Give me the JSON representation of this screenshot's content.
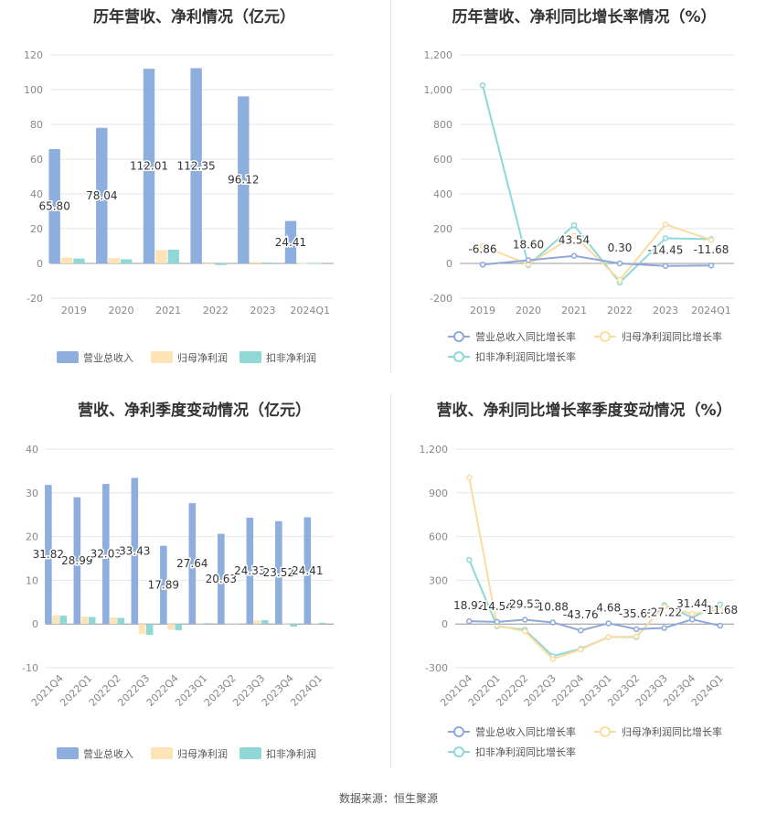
{
  "footer": "数据来源：恒生聚源",
  "colors": {
    "revenue": "#8eaedd",
    "parent_profit": "#fde3b5",
    "deducted_profit": "#8fd8d6",
    "revenue_line": "#8ea8d8",
    "parent_line": "#fbdca0",
    "deducted_line": "#8dd8d8"
  },
  "chart_data": [
    {
      "id": "annual_amount",
      "type": "bar",
      "title": "历年营收、净利情况（亿元）",
      "categories": [
        "2019",
        "2020",
        "2021",
        "2022",
        "2023",
        "2024Q1"
      ],
      "ylim": [
        -20,
        120
      ],
      "yticks": [
        -20,
        0,
        20,
        40,
        60,
        80,
        100,
        120
      ],
      "series": [
        {
          "name": "营业总收入",
          "values": [
            65.8,
            78.04,
            112.01,
            112.35,
            96.12,
            24.41
          ],
          "labels": [
            "65.80",
            "78.04",
            "112.01",
            "112.35",
            "96.12",
            "24.41"
          ]
        },
        {
          "name": "归母净利润",
          "values": [
            3.4,
            3.1,
            7.7,
            -0.5,
            0.8,
            0.2
          ]
        },
        {
          "name": "扣非净利润",
          "values": [
            2.8,
            2.4,
            7.9,
            -0.9,
            0.5,
            0.2
          ]
        }
      ],
      "grid": true,
      "legend": "bottom"
    },
    {
      "id": "annual_growth",
      "type": "line",
      "title": "历年营收、净利同比增长率情况（%）",
      "categories": [
        "2019",
        "2020",
        "2021",
        "2022",
        "2023",
        "2024Q1"
      ],
      "ylim": [
        -200,
        1200
      ],
      "yticks": [
        -200,
        0,
        200,
        400,
        600,
        800,
        1000,
        1200
      ],
      "ytick_labels": [
        "-200",
        "0",
        "200",
        "400",
        "600",
        "800",
        "1,000",
        "1,200"
      ],
      "series": [
        {
          "name": "营业总收入同比增长率",
          "values": [
            -6.86,
            18.6,
            43.54,
            0.3,
            -14.45,
            -11.68
          ],
          "labels": [
            "-6.86",
            "18.60",
            "43.54",
            "0.30",
            "-14.45",
            "-11.68"
          ]
        },
        {
          "name": "归母净利润同比增长率",
          "values": [
            100,
            -5,
            160,
            -95,
            225,
            135
          ]
        },
        {
          "name": "扣非净利润同比增长率",
          "values": [
            1025,
            -10,
            220,
            -110,
            145,
            140
          ]
        }
      ],
      "grid": true,
      "legend": "bottom"
    },
    {
      "id": "quarterly_amount",
      "type": "bar",
      "title": "营收、净利季度变动情况（亿元）",
      "categories": [
        "2021Q4",
        "2022Q1",
        "2022Q2",
        "2022Q3",
        "2022Q4",
        "2023Q1",
        "2023Q2",
        "2023Q3",
        "2023Q4",
        "2024Q1"
      ],
      "ylim": [
        -10,
        40
      ],
      "yticks": [
        -10,
        0,
        10,
        20,
        30,
        40
      ],
      "series": [
        {
          "name": "营业总收入",
          "values": [
            31.82,
            28.99,
            32.03,
            33.43,
            17.89,
            27.64,
            20.63,
            24.33,
            23.52,
            24.41
          ],
          "labels": [
            "31.82",
            "28.99",
            "32.03",
            "33.43",
            "17.89",
            "27.64",
            "20.63",
            "24.33",
            "23.52",
            "24.41"
          ]
        },
        {
          "name": "归母净利润",
          "values": [
            2.0,
            1.7,
            1.5,
            -2.3,
            -1.3,
            0.2,
            0.2,
            0.8,
            -0.1,
            0.2
          ]
        },
        {
          "name": "扣非净利润",
          "values": [
            1.9,
            1.6,
            1.4,
            -2.5,
            -1.4,
            0.2,
            0.1,
            0.9,
            -0.6,
            0.3
          ]
        }
      ],
      "grid": true,
      "legend": "bottom"
    },
    {
      "id": "quarterly_growth",
      "type": "line",
      "title": "营收、净利同比增长率季度变动情况（%）",
      "categories": [
        "2021Q4",
        "2022Q1",
        "2022Q2",
        "2022Q3",
        "2022Q4",
        "2023Q1",
        "2023Q2",
        "2023Q3",
        "2023Q4",
        "2024Q1"
      ],
      "ylim": [
        -300,
        1200
      ],
      "yticks": [
        -300,
        0,
        300,
        600,
        900,
        1200
      ],
      "ytick_labels": [
        "-300",
        "0",
        "300",
        "600",
        "900",
        "1,200"
      ],
      "series": [
        {
          "name": "营业总收入同比增长率",
          "values": [
            18.92,
            14.54,
            29.53,
            10.88,
            -43.76,
            4.68,
            -35.61,
            -27.22,
            31.44,
            -11.68
          ],
          "labels": [
            "18.92",
            "14.54",
            "29.53",
            "10.88",
            "-43.76",
            "4.68",
            "-35.61",
            "-27.22",
            "31.44",
            "-11.68"
          ]
        },
        {
          "name": "归母净利润同比增长率",
          "values": [
            1005,
            -10,
            -50,
            -240,
            -175,
            -90,
            -85,
            120,
            70,
            100
          ]
        },
        {
          "name": "扣非净利润同比增长率",
          "values": [
            440,
            -15,
            -40,
            -220,
            -170,
            -90,
            -90,
            130,
            45,
            135
          ]
        }
      ],
      "grid": true,
      "legend": "bottom"
    }
  ]
}
